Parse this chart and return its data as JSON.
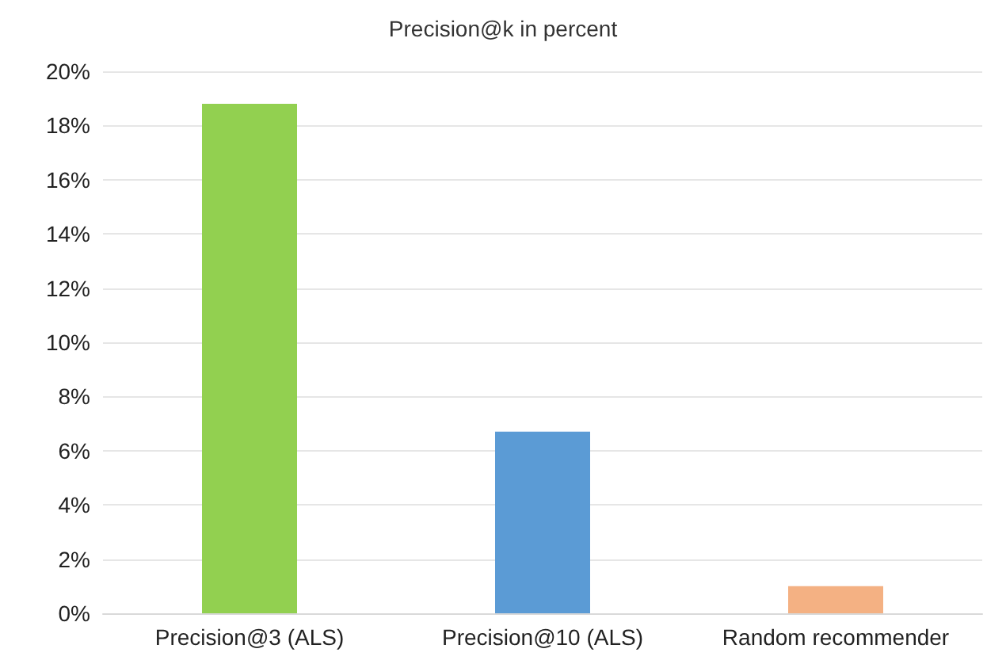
{
  "chart_data": {
    "type": "bar",
    "title": "Precision@k in percent",
    "categories": [
      "Precision@3 (ALS)",
      "Precision@10 (ALS)",
      "Random recommender"
    ],
    "values": [
      18.8,
      6.7,
      1.0
    ],
    "colors": [
      "#92d050",
      "#5b9bd5",
      "#f4b183"
    ],
    "ylim": [
      0,
      20
    ],
    "yticks": [
      {
        "value": 0,
        "label": "0%"
      },
      {
        "value": 2,
        "label": "2%"
      },
      {
        "value": 4,
        "label": "4%"
      },
      {
        "value": 6,
        "label": "6%"
      },
      {
        "value": 8,
        "label": "8%"
      },
      {
        "value": 10,
        "label": "10%"
      },
      {
        "value": 12,
        "label": "12%"
      },
      {
        "value": 14,
        "label": "14%"
      },
      {
        "value": 16,
        "label": "16%"
      },
      {
        "value": 18,
        "label": "18%"
      },
      {
        "value": 20,
        "label": "20%"
      }
    ],
    "grid": "y"
  }
}
